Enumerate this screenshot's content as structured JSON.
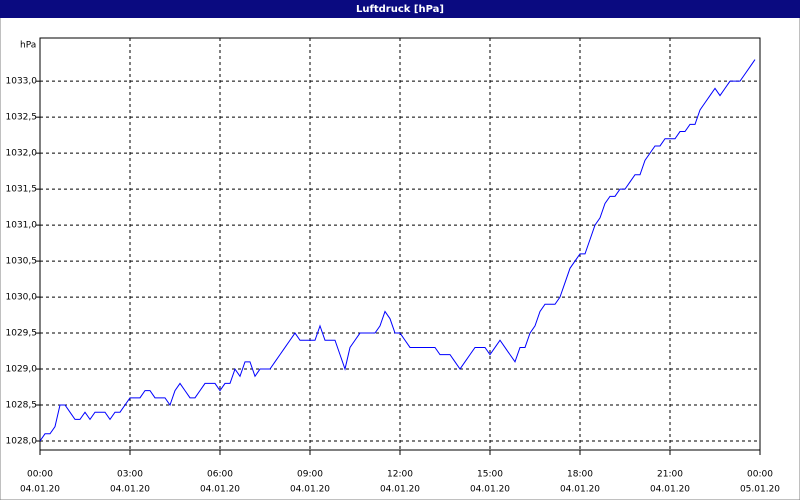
{
  "chart_data": {
    "type": "line",
    "title": "Luftdruck [hPa]",
    "y_label": "hPa",
    "x": [
      0,
      10,
      20,
      30,
      40,
      50,
      60,
      70,
      80,
      90,
      100,
      110,
      120,
      130,
      140,
      150,
      160,
      170,
      180,
      190,
      200,
      210,
      220,
      230,
      240,
      250,
      260,
      270,
      280,
      290,
      300,
      310,
      320,
      330,
      340,
      350,
      360,
      370,
      380,
      390,
      400,
      410,
      420,
      430,
      440,
      450,
      460,
      470,
      480,
      490,
      500,
      510,
      520,
      530,
      540,
      550,
      560,
      570,
      580,
      590,
      600,
      610,
      620,
      630,
      640,
      650,
      660,
      670,
      680,
      690,
      700,
      710,
      720,
      730,
      740,
      750,
      760,
      770,
      780,
      790,
      800,
      810,
      820,
      830,
      840,
      850,
      860,
      870,
      880,
      890,
      900,
      910,
      920,
      930,
      940,
      950,
      960,
      970,
      980,
      990,
      1000,
      1010,
      1020,
      1030,
      1040,
      1050,
      1060,
      1070,
      1080,
      1090,
      1100,
      1110,
      1120,
      1130,
      1140,
      1150,
      1160,
      1170,
      1180,
      1190,
      1200,
      1210,
      1220,
      1230,
      1240,
      1250,
      1260,
      1270,
      1280,
      1290,
      1300,
      1310,
      1320,
      1330,
      1340,
      1350,
      1360,
      1370,
      1380,
      1390,
      1400,
      1410,
      1420,
      1430
    ],
    "series": [
      {
        "color": "#0000ff",
        "values": [
          1028.0,
          1028.1,
          1028.1,
          1028.2,
          1028.5,
          1028.5,
          1028.4,
          1028.3,
          1028.3,
          1028.4,
          1028.3,
          1028.4,
          1028.4,
          1028.4,
          1028.3,
          1028.4,
          1028.4,
          1028.5,
          1028.6,
          1028.6,
          1028.6,
          1028.7,
          1028.7,
          1028.6,
          1028.6,
          1028.6,
          1028.5,
          1028.7,
          1028.8,
          1028.7,
          1028.6,
          1028.6,
          1028.7,
          1028.8,
          1028.8,
          1028.8,
          1028.7,
          1028.8,
          1028.8,
          1029.0,
          1028.9,
          1029.1,
          1029.1,
          1028.9,
          1029.0,
          1029.0,
          1029.0,
          1029.1,
          1029.2,
          1029.3,
          1029.4,
          1029.5,
          1029.4,
          1029.4,
          1029.4,
          1029.4,
          1029.6,
          1029.4,
          1029.4,
          1029.4,
          1029.2,
          1029.0,
          1029.3,
          1029.4,
          1029.5,
          1029.5,
          1029.5,
          1029.5,
          1029.6,
          1029.8,
          1029.7,
          1029.5,
          1029.5,
          1029.4,
          1029.3,
          1029.3,
          1029.3,
          1029.3,
          1029.3,
          1029.3,
          1029.2,
          1029.2,
          1029.2,
          1029.1,
          1029.0,
          1029.1,
          1029.2,
          1029.3,
          1029.3,
          1029.3,
          1029.2,
          1029.3,
          1029.4,
          1029.3,
          1029.2,
          1029.1,
          1029.3,
          1029.3,
          1029.5,
          1029.6,
          1029.8,
          1029.9,
          1029.9,
          1029.9,
          1030.0,
          1030.2,
          1030.4,
          1030.5,
          1030.6,
          1030.6,
          1030.8,
          1031.0,
          1031.1,
          1031.3,
          1031.4,
          1031.4,
          1031.5,
          1031.5,
          1031.6,
          1031.7,
          1031.7,
          1031.9,
          1032.0,
          1032.1,
          1032.1,
          1032.2,
          1032.2,
          1032.2,
          1032.3,
          1032.3,
          1032.4,
          1032.4,
          1032.6,
          1032.7,
          1032.8,
          1032.9,
          1032.8,
          1032.9,
          1033.0,
          1033.0,
          1033.0,
          1033.1,
          1033.2,
          1033.3
        ]
      }
    ],
    "xlim": [
      0,
      1440
    ],
    "xticks": [
      {
        "value": 0,
        "label": "00:00",
        "date": "04.01.20"
      },
      {
        "value": 180,
        "label": "03:00",
        "date": "04.01.20"
      },
      {
        "value": 360,
        "label": "06:00",
        "date": "04.01.20"
      },
      {
        "value": 540,
        "label": "09:00",
        "date": "04.01.20"
      },
      {
        "value": 720,
        "label": "12:00",
        "date": "04.01.20"
      },
      {
        "value": 900,
        "label": "15:00",
        "date": "04.01.20"
      },
      {
        "value": 1080,
        "label": "18:00",
        "date": "04.01.20"
      },
      {
        "value": 1260,
        "label": "21:00",
        "date": "04.01.20"
      },
      {
        "value": 1440,
        "label": "00:00",
        "date": "05.01.20"
      }
    ],
    "ylim": [
      1027.875,
      1033.6
    ],
    "yticks": [
      {
        "value": 1028.0,
        "label": "1028,0"
      },
      {
        "value": 1028.5,
        "label": "1028,5"
      },
      {
        "value": 1029.0,
        "label": "1029,0"
      },
      {
        "value": 1029.5,
        "label": "1029,5"
      },
      {
        "value": 1030.0,
        "label": "1030,0"
      },
      {
        "value": 1030.5,
        "label": "1030,5"
      },
      {
        "value": 1031.0,
        "label": "1031,0"
      },
      {
        "value": 1031.5,
        "label": "1031,5"
      },
      {
        "value": 1032.0,
        "label": "1032,0"
      },
      {
        "value": 1032.5,
        "label": "1032,5"
      },
      {
        "value": 1033.0,
        "label": "1033,0"
      }
    ],
    "grid": true
  }
}
